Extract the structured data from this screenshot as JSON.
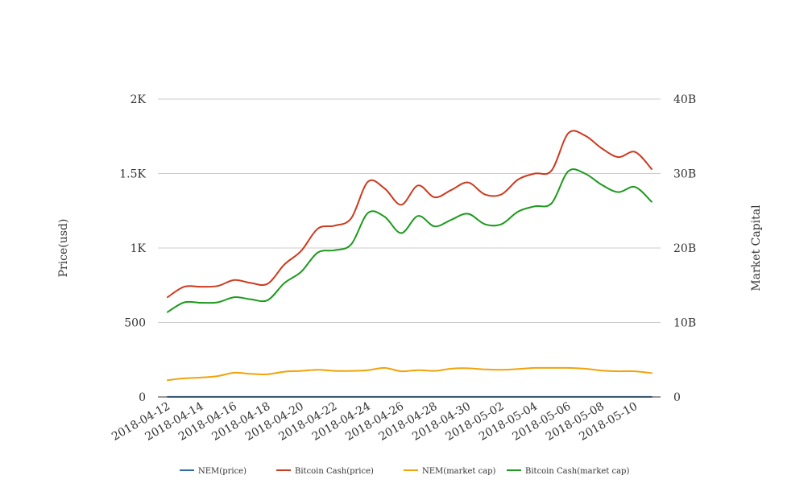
{
  "chart_data": {
    "type": "line",
    "x": [
      "2018-04-12",
      "2018-04-13",
      "2018-04-14",
      "2018-04-15",
      "2018-04-16",
      "2018-04-17",
      "2018-04-18",
      "2018-04-19",
      "2018-04-20",
      "2018-04-21",
      "2018-04-22",
      "2018-04-23",
      "2018-04-24",
      "2018-04-25",
      "2018-04-26",
      "2018-04-27",
      "2018-04-28",
      "2018-04-29",
      "2018-04-30",
      "2018-05-01",
      "2018-05-02",
      "2018-05-03",
      "2018-05-04",
      "2018-05-05",
      "2018-05-06",
      "2018-05-07",
      "2018-05-08",
      "2018-05-09",
      "2018-05-10",
      "2018-05-11"
    ],
    "x_tick_labels": [
      "2018-04-12",
      "2018-04-14",
      "2018-04-16",
      "2018-04-18",
      "2018-04-20",
      "2018-04-22",
      "2018-04-24",
      "2018-04-26",
      "2018-04-28",
      "2018-04-30",
      "2018-05-02",
      "2018-05-04",
      "2018-05-06",
      "2018-05-08",
      "2018-05-10"
    ],
    "y_left": {
      "label": "Price(usd)",
      "lim": [
        0,
        2000
      ],
      "ticks": [
        0,
        500,
        1000,
        1500,
        2000
      ],
      "tick_labels": [
        "0",
        "500",
        "1K",
        "1.5K",
        "2K"
      ]
    },
    "y_right": {
      "label": "Market Capital",
      "lim": [
        0,
        40000000000
      ],
      "ticks": [
        0,
        10000000000,
        20000000000,
        30000000000,
        40000000000
      ],
      "tick_labels": [
        "0",
        "10B",
        "20B",
        "30B",
        "40B"
      ]
    },
    "grid": true,
    "legend_position": "bottom",
    "series": [
      {
        "name": "NEM(price)",
        "axis": "left",
        "color": "#2f6fa6",
        "values": [
          0.28,
          0.29,
          0.3,
          0.31,
          0.34,
          0.33,
          0.32,
          0.35,
          0.37,
          0.39,
          0.38,
          0.38,
          0.39,
          0.42,
          0.38,
          0.39,
          0.38,
          0.4,
          0.41,
          0.4,
          0.39,
          0.4,
          0.42,
          0.42,
          0.42,
          0.41,
          0.39,
          0.38,
          0.38,
          0.36
        ]
      },
      {
        "name": "Bitcoin Cash(price)",
        "axis": "left",
        "color": "#cc3b1f",
        "values": [
          670,
          740,
          740,
          745,
          785,
          765,
          760,
          890,
          980,
          1130,
          1150,
          1200,
          1445,
          1400,
          1290,
          1420,
          1340,
          1390,
          1440,
          1360,
          1360,
          1460,
          1500,
          1520,
          1770,
          1755,
          1670,
          1610,
          1645,
          1530
        ]
      },
      {
        "name": "NEM(market cap)",
        "axis": "right",
        "color": "#f0a30a",
        "values": [
          2250000000,
          2500000000,
          2600000000,
          2800000000,
          3250000000,
          3100000000,
          3050000000,
          3400000000,
          3500000000,
          3650000000,
          3500000000,
          3500000000,
          3600000000,
          3900000000,
          3450000000,
          3600000000,
          3500000000,
          3800000000,
          3850000000,
          3700000000,
          3650000000,
          3750000000,
          3900000000,
          3900000000,
          3900000000,
          3800000000,
          3550000000,
          3450000000,
          3450000000,
          3200000000
        ]
      },
      {
        "name": "Bitcoin Cash(market cap)",
        "axis": "right",
        "color": "#1c9a1c",
        "values": [
          11400000000,
          12700000000,
          12650000000,
          12700000000,
          13400000000,
          13100000000,
          13000000000,
          15300000000,
          16800000000,
          19400000000,
          19700000000,
          20500000000,
          24700000000,
          24200000000,
          22000000000,
          24300000000,
          22900000000,
          23800000000,
          24600000000,
          23200000000,
          23200000000,
          24900000000,
          25600000000,
          26000000000,
          30300000000,
          30000000000,
          28500000000,
          27500000000,
          28200000000,
          26200000000
        ]
      }
    ]
  }
}
